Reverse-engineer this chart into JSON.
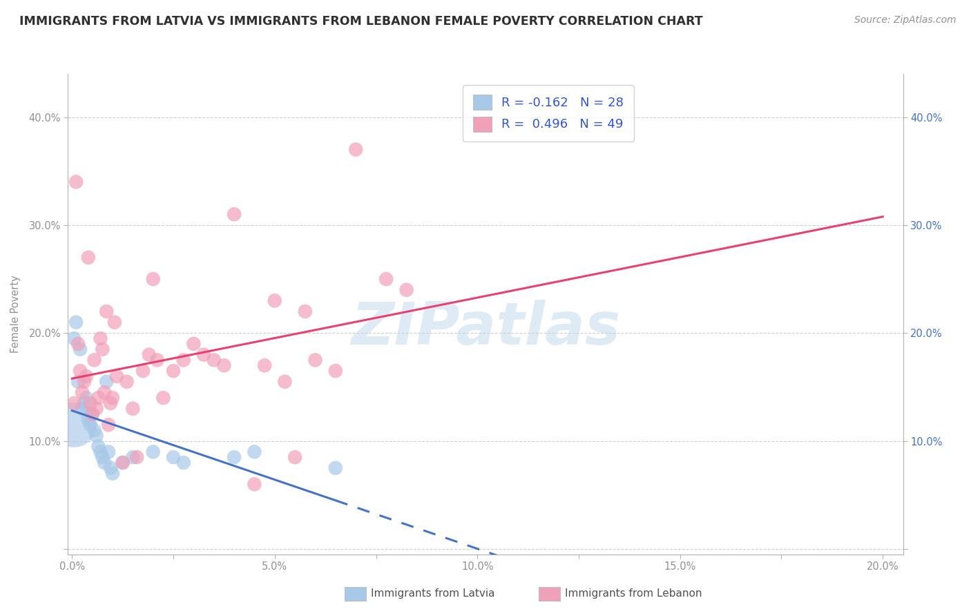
{
  "title": "IMMIGRANTS FROM LATVIA VS IMMIGRANTS FROM LEBANON FEMALE POVERTY CORRELATION CHART",
  "source": "Source: ZipAtlas.com",
  "ylabel": "Female Poverty",
  "legend_label_latvia": "Immigrants from Latvia",
  "legend_label_lebanon": "Immigrants from Lebanon",
  "latvia_R": -0.162,
  "latvia_N": 28,
  "lebanon_R": 0.496,
  "lebanon_N": 49,
  "xlim": [
    -0.001,
    0.205
  ],
  "ylim": [
    -0.005,
    0.44
  ],
  "xticks": [
    0.0,
    0.025,
    0.05,
    0.075,
    0.1,
    0.125,
    0.15,
    0.175,
    0.2
  ],
  "xtick_labels": [
    "0.0%",
    "",
    "5.0%",
    "",
    "10.0%",
    "",
    "15.0%",
    "",
    "20.0%"
  ],
  "yticks": [
    0.0,
    0.1,
    0.2,
    0.3,
    0.4
  ],
  "ytick_labels": [
    "",
    "10.0%",
    "20.0%",
    "30.0%",
    "40.0%"
  ],
  "right_ytick_labels": [
    "",
    "10.0%",
    "20.0%",
    "30.0%",
    "40.0%"
  ],
  "color_latvia": "#a8c8e8",
  "color_lebanon": "#f0a0b8",
  "color_latvia_line": "#4472c4",
  "color_lebanon_line": "#e84070",
  "watermark": "ZIPatlas",
  "latvia_points": [
    [
      0.0005,
      0.195
    ],
    [
      0.001,
      0.21
    ],
    [
      0.0015,
      0.155
    ],
    [
      0.002,
      0.185
    ],
    [
      0.0025,
      0.13
    ],
    [
      0.003,
      0.135
    ],
    [
      0.0035,
      0.14
    ],
    [
      0.004,
      0.12
    ],
    [
      0.0045,
      0.115
    ],
    [
      0.005,
      0.125
    ],
    [
      0.0055,
      0.11
    ],
    [
      0.006,
      0.105
    ],
    [
      0.0065,
      0.095
    ],
    [
      0.007,
      0.09
    ],
    [
      0.0075,
      0.085
    ],
    [
      0.008,
      0.08
    ],
    [
      0.0085,
      0.155
    ],
    [
      0.009,
      0.09
    ],
    [
      0.0095,
      0.075
    ],
    [
      0.01,
      0.07
    ],
    [
      0.0125,
      0.08
    ],
    [
      0.015,
      0.085
    ],
    [
      0.02,
      0.09
    ],
    [
      0.025,
      0.085
    ],
    [
      0.0275,
      0.08
    ],
    [
      0.04,
      0.085
    ],
    [
      0.045,
      0.09
    ],
    [
      0.065,
      0.075
    ]
  ],
  "latvia_large_point": [
    0.0005,
    0.115
  ],
  "lebanon_points": [
    [
      0.0005,
      0.135
    ],
    [
      0.001,
      0.34
    ],
    [
      0.0015,
      0.19
    ],
    [
      0.002,
      0.165
    ],
    [
      0.0025,
      0.145
    ],
    [
      0.003,
      0.155
    ],
    [
      0.0035,
      0.16
    ],
    [
      0.004,
      0.27
    ],
    [
      0.0045,
      0.135
    ],
    [
      0.005,
      0.125
    ],
    [
      0.0055,
      0.175
    ],
    [
      0.006,
      0.13
    ],
    [
      0.0065,
      0.14
    ],
    [
      0.007,
      0.195
    ],
    [
      0.0075,
      0.185
    ],
    [
      0.008,
      0.145
    ],
    [
      0.0085,
      0.22
    ],
    [
      0.009,
      0.115
    ],
    [
      0.0095,
      0.135
    ],
    [
      0.01,
      0.14
    ],
    [
      0.0105,
      0.21
    ],
    [
      0.011,
      0.16
    ],
    [
      0.0125,
      0.08
    ],
    [
      0.0135,
      0.155
    ],
    [
      0.015,
      0.13
    ],
    [
      0.016,
      0.085
    ],
    [
      0.0175,
      0.165
    ],
    [
      0.019,
      0.18
    ],
    [
      0.02,
      0.25
    ],
    [
      0.021,
      0.175
    ],
    [
      0.0225,
      0.14
    ],
    [
      0.025,
      0.165
    ],
    [
      0.0275,
      0.175
    ],
    [
      0.03,
      0.19
    ],
    [
      0.0325,
      0.18
    ],
    [
      0.035,
      0.175
    ],
    [
      0.0375,
      0.17
    ],
    [
      0.04,
      0.31
    ],
    [
      0.045,
      0.06
    ],
    [
      0.0475,
      0.17
    ],
    [
      0.05,
      0.23
    ],
    [
      0.0525,
      0.155
    ],
    [
      0.055,
      0.085
    ],
    [
      0.0575,
      0.22
    ],
    [
      0.06,
      0.175
    ],
    [
      0.065,
      0.165
    ],
    [
      0.07,
      0.37
    ],
    [
      0.0775,
      0.25
    ],
    [
      0.0825,
      0.24
    ]
  ],
  "background_color": "#ffffff",
  "grid_color": "#c8c8c8",
  "title_color": "#303030",
  "axis_label_color": "#909090"
}
